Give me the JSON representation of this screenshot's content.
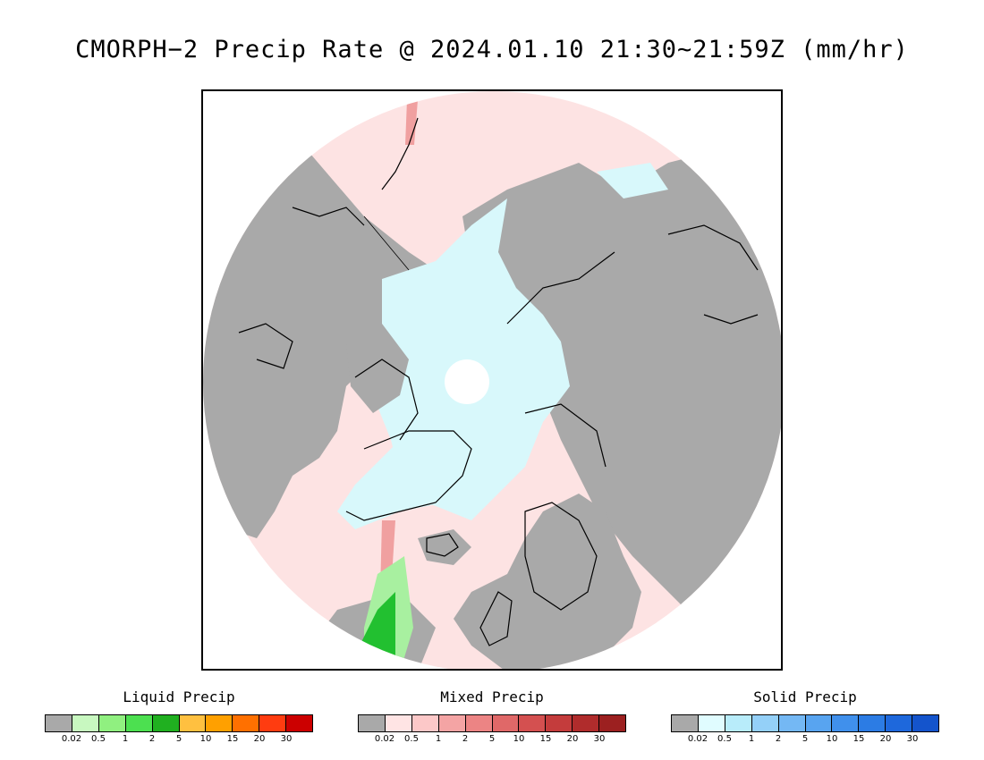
{
  "title": "CMORPH−2 Precip Rate @ 2024.01.10 21:30~21:59Z (mm/hr)",
  "map": {
    "projection": "north-polar-stereographic",
    "colors": {
      "no_precip": "#a9a9a9",
      "mixed_light": "#fde3e3",
      "solid_light": "#d8f8fb",
      "liquid_light": "#a8f0a0",
      "liquid_heavy": "#22c030",
      "mixed_moderate": "#f0a0a0",
      "solid_moderate": "#90d8f0",
      "coastline": "#000000"
    }
  },
  "legends": [
    {
      "title": "Liquid Precip",
      "colors": [
        "#a9a9a9",
        "#c8f8c0",
        "#90f080",
        "#4ce050",
        "#20b020",
        "#ffc040",
        "#ffa000",
        "#ff7000",
        "#ff3c10",
        "#cc0000"
      ],
      "ticks": [
        "0.02",
        "0.5",
        "1",
        "2",
        "5",
        "10",
        "15",
        "20",
        "30"
      ]
    },
    {
      "title": "Mixed Precip",
      "colors": [
        "#a9a9a9",
        "#ffe4e4",
        "#fcc8c8",
        "#f4a4a4",
        "#ec8484",
        "#e06868",
        "#d45050",
        "#c43c3c",
        "#b02c2c",
        "#9c2020"
      ],
      "ticks": [
        "0.02",
        "0.5",
        "1",
        "2",
        "5",
        "10",
        "15",
        "20",
        "30"
      ]
    },
    {
      "title": "Solid Precip",
      "colors": [
        "#a9a9a9",
        "#e0fcff",
        "#b8ecfa",
        "#94d0f8",
        "#74b8f4",
        "#58a4f0",
        "#4090ec",
        "#2c7ce4",
        "#1e68dc",
        "#1454cc"
      ],
      "ticks": [
        "0.02",
        "0.5",
        "1",
        "2",
        "5",
        "10",
        "15",
        "20",
        "30"
      ]
    }
  ]
}
